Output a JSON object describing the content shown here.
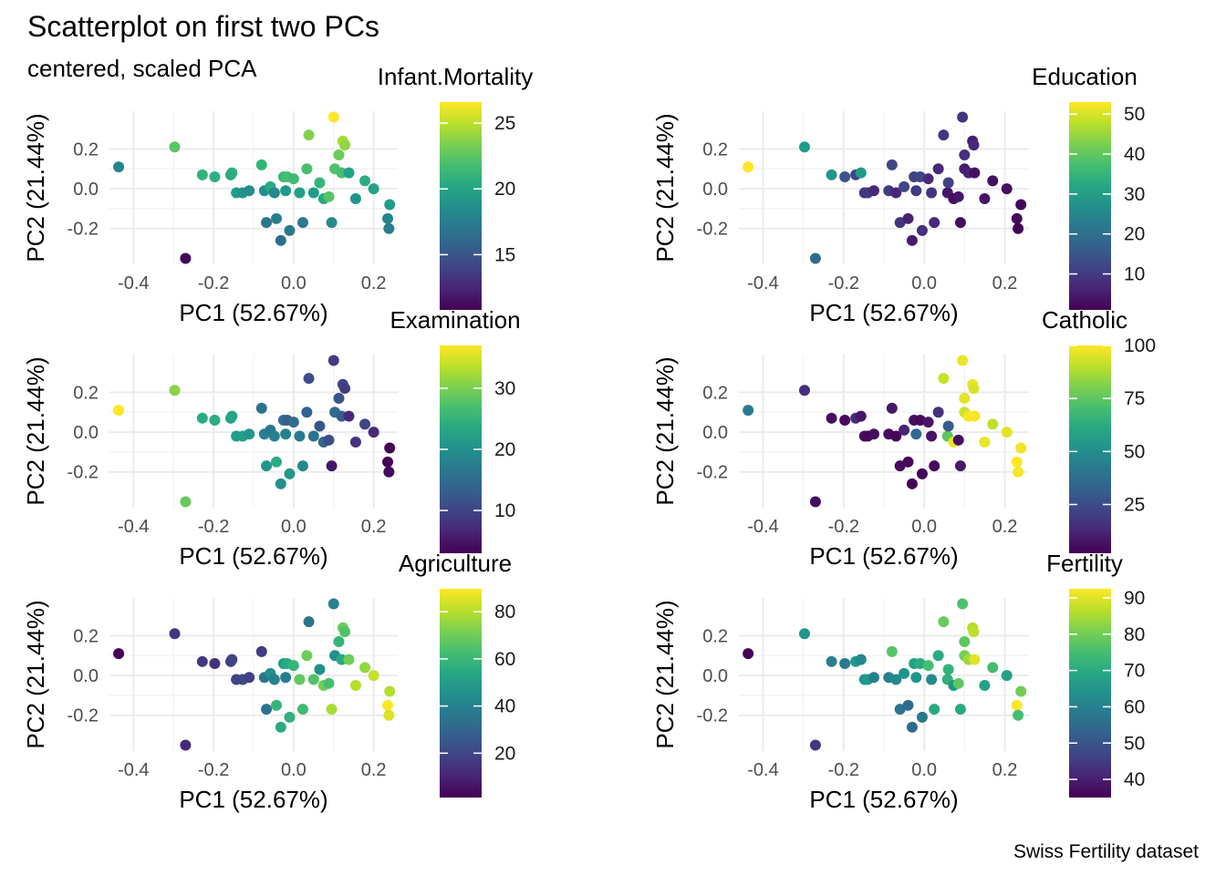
{
  "title": "Scatterplot on first two PCs",
  "subtitle": "centered, scaled PCA",
  "caption": "Swiss Fertility dataset",
  "chart_data": [
    {
      "type": "scatter",
      "color_variable": "Infant.Mortality",
      "xlabel": "PC1 (52.67%)",
      "ylabel": "PC2 (21.44%)",
      "xlim": [
        -0.46,
        0.26
      ],
      "ylim": [
        -0.38,
        0.39
      ],
      "xticks": [
        -0.4,
        -0.2,
        0.0,
        0.2
      ],
      "xtick_labels": [
        "-0.4",
        "-0.2",
        "0.0",
        "0.2"
      ],
      "yticks": [
        -0.2,
        0.0,
        0.2
      ],
      "ytick_labels": [
        "-0.2",
        "0.0",
        "0.2"
      ],
      "grid": true,
      "palette": "viridis",
      "legend": {
        "title": "Infant.Mortality",
        "range": [
          10.8,
          26.6
        ],
        "ticks": [
          15,
          20,
          25
        ],
        "tick_labels": [
          "15",
          "20",
          "25"
        ],
        "placement": "right"
      },
      "x": [
        -0.437,
        -0.297,
        -0.27,
        -0.228,
        -0.197,
        -0.157,
        -0.154,
        -0.143,
        -0.127,
        -0.111,
        -0.08,
        -0.073,
        -0.068,
        -0.058,
        -0.048,
        -0.043,
        -0.032,
        -0.025,
        -0.02,
        -0.016,
        -0.01,
        0.0,
        0.015,
        0.023,
        0.033,
        0.038,
        0.05,
        0.065,
        0.075,
        0.088,
        0.095,
        0.1,
        0.103,
        0.113,
        0.12,
        0.123,
        0.128,
        0.138,
        0.155,
        0.178,
        0.2,
        0.235,
        0.238,
        0.24
      ],
      "y": [
        0.11,
        0.21,
        -0.35,
        0.07,
        0.06,
        0.07,
        0.08,
        -0.02,
        -0.02,
        -0.01,
        0.12,
        -0.01,
        -0.17,
        0.01,
        -0.02,
        -0.15,
        -0.26,
        0.06,
        -0.01,
        0.06,
        -0.21,
        0.05,
        -0.02,
        -0.17,
        0.1,
        0.27,
        -0.02,
        0.03,
        -0.05,
        -0.04,
        -0.17,
        0.36,
        0.1,
        0.17,
        0.08,
        0.24,
        0.22,
        0.08,
        -0.05,
        0.04,
        0.0,
        -0.15,
        -0.2,
        -0.08
      ],
      "values": [
        18.0,
        22.5,
        11.0,
        21.0,
        20.8,
        20.2,
        20.6,
        19.5,
        19.0,
        18.7,
        21.2,
        18.7,
        17.0,
        20.5,
        18.2,
        17.4,
        16.5,
        21.5,
        19.4,
        21.8,
        17.3,
        21.6,
        19.8,
        17.2,
        22.0,
        23.6,
        19.5,
        21.2,
        20.2,
        22.4,
        18.5,
        26.6,
        22.2,
        23.0,
        21.9,
        24.5,
        24.0,
        19.8,
        19.0,
        20.6,
        20.0,
        18.1,
        17.5,
        19.5
      ]
    },
    {
      "type": "scatter",
      "color_variable": "Education",
      "xlabel": "PC1 (52.67%)",
      "ylabel": "PC2 (21.44%)",
      "xlim": [
        -0.46,
        0.26
      ],
      "ylim": [
        -0.38,
        0.39
      ],
      "xticks": [
        -0.4,
        -0.2,
        0.0,
        0.2
      ],
      "xtick_labels": [
        "-0.4",
        "-0.2",
        "0.0",
        "0.2"
      ],
      "yticks": [
        -0.2,
        0.0,
        0.2
      ],
      "ytick_labels": [
        "-0.2",
        "0.0",
        "0.2"
      ],
      "grid": true,
      "palette": "viridis",
      "legend": {
        "title": "Education",
        "range": [
          1,
          53
        ],
        "ticks": [
          10,
          20,
          30,
          40,
          50
        ],
        "tick_labels": [
          "10",
          "20",
          "30",
          "40",
          "50"
        ],
        "placement": "right"
      },
      "x": [
        -0.437,
        -0.297,
        -0.27,
        -0.23,
        -0.197,
        -0.17,
        -0.157,
        -0.148,
        -0.14,
        -0.125,
        -0.088,
        -0.08,
        -0.07,
        -0.06,
        -0.05,
        -0.04,
        -0.03,
        -0.025,
        -0.02,
        -0.01,
        -0.005,
        0.01,
        0.018,
        0.025,
        0.035,
        0.048,
        0.058,
        0.06,
        0.073,
        0.085,
        0.09,
        0.095,
        0.1,
        0.1,
        0.11,
        0.12,
        0.123,
        0.125,
        0.15,
        0.17,
        0.205,
        0.23,
        0.233,
        0.24
      ],
      "y": [
        0.11,
        0.21,
        -0.35,
        0.07,
        0.06,
        0.07,
        0.08,
        -0.02,
        -0.02,
        -0.01,
        -0.01,
        0.12,
        -0.02,
        -0.17,
        0.01,
        -0.15,
        -0.26,
        0.06,
        -0.01,
        0.06,
        -0.21,
        0.05,
        -0.02,
        -0.17,
        0.1,
        0.27,
        -0.02,
        0.03,
        -0.05,
        -0.04,
        -0.17,
        0.36,
        0.1,
        0.17,
        0.08,
        0.24,
        0.22,
        0.08,
        -0.05,
        0.04,
        0.0,
        -0.15,
        -0.2,
        -0.08
      ],
      "values": [
        53,
        29,
        19,
        28,
        14,
        12,
        29,
        8,
        10,
        7,
        10,
        12,
        7,
        9,
        12,
        6,
        5,
        11,
        10,
        12,
        8,
        7,
        9,
        7,
        7,
        9,
        4,
        11,
        3,
        4,
        3,
        9,
        5,
        8,
        6,
        5,
        7,
        3,
        4,
        3,
        3,
        2,
        1,
        2
      ]
    },
    {
      "type": "scatter",
      "color_variable": "Examination",
      "xlabel": "PC1 (52.67%)",
      "ylabel": "PC2 (21.44%)",
      "xlim": [
        -0.46,
        0.26
      ],
      "ylim": [
        -0.38,
        0.39
      ],
      "xticks": [
        -0.4,
        -0.2,
        0.0,
        0.2
      ],
      "xtick_labels": [
        "-0.4",
        "-0.2",
        "0.0",
        "0.2"
      ],
      "yticks": [
        -0.2,
        0.0,
        0.2
      ],
      "ytick_labels": [
        "-0.2",
        "0.0",
        "0.2"
      ],
      "grid": true,
      "palette": "viridis",
      "legend": {
        "title": "Examination",
        "range": [
          3,
          37
        ],
        "ticks": [
          10,
          20,
          30
        ],
        "tick_labels": [
          "10",
          "20",
          "30"
        ],
        "placement": "right"
      },
      "x": [
        -0.437,
        -0.297,
        -0.27,
        -0.228,
        -0.197,
        -0.157,
        -0.154,
        -0.143,
        -0.127,
        -0.111,
        -0.08,
        -0.073,
        -0.068,
        -0.058,
        -0.048,
        -0.043,
        -0.032,
        -0.025,
        -0.02,
        -0.016,
        -0.01,
        0.0,
        0.015,
        0.023,
        0.033,
        0.038,
        0.05,
        0.065,
        0.075,
        0.088,
        0.095,
        0.1,
        0.103,
        0.113,
        0.12,
        0.123,
        0.128,
        0.138,
        0.155,
        0.178,
        0.2,
        0.235,
        0.238,
        0.24
      ],
      "y": [
        0.11,
        0.21,
        -0.35,
        0.07,
        0.06,
        0.07,
        0.08,
        -0.02,
        -0.02,
        -0.01,
        0.12,
        -0.01,
        -0.17,
        0.01,
        -0.02,
        -0.15,
        -0.26,
        0.06,
        -0.01,
        0.06,
        -0.21,
        0.05,
        -0.02,
        -0.17,
        0.1,
        0.27,
        -0.02,
        0.03,
        -0.05,
        -0.04,
        -0.17,
        0.36,
        0.1,
        0.17,
        0.08,
        0.24,
        0.22,
        0.08,
        -0.05,
        0.04,
        0.0,
        -0.15,
        -0.2,
        -0.08
      ],
      "values": [
        37,
        31,
        29,
        24,
        24,
        22,
        23,
        22,
        22,
        21,
        16,
        18,
        21,
        17,
        18,
        24,
        20,
        15,
        18,
        13,
        21,
        15,
        17,
        19,
        14,
        11,
        16,
        12,
        14,
        11,
        5,
        9,
        15,
        12,
        13,
        10,
        9,
        7,
        8,
        10,
        7,
        3,
        4,
        3
      ]
    },
    {
      "type": "scatter",
      "color_variable": "Catholic",
      "xlabel": "PC1 (52.67%)",
      "ylabel": "PC2 (21.44%)",
      "xlim": [
        -0.46,
        0.26
      ],
      "ylim": [
        -0.38,
        0.39
      ],
      "xticks": [
        -0.4,
        -0.2,
        0.0,
        0.2
      ],
      "xtick_labels": [
        "-0.4",
        "-0.2",
        "0.0",
        "0.2"
      ],
      "yticks": [
        -0.2,
        0.0,
        0.2
      ],
      "ytick_labels": [
        "-0.2",
        "0.0",
        "0.2"
      ],
      "grid": true,
      "palette": "viridis",
      "legend": {
        "title": "Catholic",
        "range": [
          2,
          100
        ],
        "ticks": [
          25,
          50,
          75,
          100
        ],
        "tick_labels": [
          "25",
          "50",
          "75",
          "100"
        ],
        "placement": "right"
      },
      "x": [
        -0.437,
        -0.297,
        -0.27,
        -0.23,
        -0.197,
        -0.17,
        -0.157,
        -0.148,
        -0.14,
        -0.125,
        -0.088,
        -0.08,
        -0.07,
        -0.06,
        -0.05,
        -0.04,
        -0.03,
        -0.025,
        -0.02,
        -0.01,
        -0.005,
        0.01,
        0.018,
        0.025,
        0.035,
        0.048,
        0.058,
        0.06,
        0.073,
        0.085,
        0.09,
        0.095,
        0.1,
        0.1,
        0.11,
        0.12,
        0.123,
        0.125,
        0.15,
        0.17,
        0.205,
        0.23,
        0.233,
        0.24
      ],
      "y": [
        0.11,
        0.21,
        -0.35,
        0.07,
        0.06,
        0.07,
        0.08,
        -0.02,
        -0.02,
        -0.01,
        -0.01,
        0.12,
        -0.02,
        -0.17,
        0.01,
        -0.15,
        -0.26,
        0.06,
        -0.01,
        0.06,
        -0.21,
        0.05,
        -0.02,
        -0.17,
        0.1,
        0.27,
        -0.02,
        0.03,
        -0.05,
        -0.04,
        -0.17,
        0.36,
        0.1,
        0.17,
        0.08,
        0.24,
        0.22,
        0.08,
        -0.05,
        0.04,
        0.0,
        -0.15,
        -0.2,
        -0.08
      ],
      "values": [
        42,
        15,
        5,
        6,
        5,
        14,
        8,
        6,
        4,
        5,
        4,
        8,
        3,
        5,
        12,
        4,
        2,
        6,
        35,
        5,
        3,
        8,
        7,
        4,
        16,
        92,
        75,
        30,
        98,
        6,
        9,
        97,
        93,
        96,
        99,
        97,
        95,
        99,
        97,
        91,
        96,
        100,
        99,
        98
      ]
    },
    {
      "type": "scatter",
      "color_variable": "Agriculture",
      "xlabel": "PC1 (52.67%)",
      "ylabel": "PC2 (21.44%)",
      "xlim": [
        -0.46,
        0.26
      ],
      "ylim": [
        -0.38,
        0.39
      ],
      "xticks": [
        -0.4,
        -0.2,
        0.0,
        0.2
      ],
      "xtick_labels": [
        "-0.4",
        "-0.2",
        "0.0",
        "0.2"
      ],
      "yticks": [
        -0.2,
        0.0,
        0.2
      ],
      "ytick_labels": [
        "-0.2",
        "0.0",
        "0.2"
      ],
      "grid": true,
      "palette": "viridis",
      "legend": {
        "title": "Agriculture",
        "range": [
          1.2,
          89.7
        ],
        "ticks": [
          20,
          40,
          60,
          80
        ],
        "tick_labels": [
          "20",
          "40",
          "60",
          "80"
        ],
        "placement": "right"
      },
      "x": [
        -0.437,
        -0.297,
        -0.27,
        -0.228,
        -0.197,
        -0.157,
        -0.154,
        -0.143,
        -0.127,
        -0.111,
        -0.08,
        -0.073,
        -0.068,
        -0.058,
        -0.048,
        -0.043,
        -0.032,
        -0.025,
        -0.02,
        -0.016,
        -0.01,
        0.0,
        0.015,
        0.023,
        0.033,
        0.038,
        0.05,
        0.065,
        0.075,
        0.088,
        0.095,
        0.1,
        0.103,
        0.113,
        0.12,
        0.123,
        0.128,
        0.138,
        0.155,
        0.178,
        0.2,
        0.235,
        0.238,
        0.24
      ],
      "y": [
        0.11,
        0.21,
        -0.35,
        0.07,
        0.06,
        0.07,
        0.08,
        -0.02,
        -0.02,
        -0.01,
        0.12,
        -0.01,
        -0.17,
        0.01,
        -0.02,
        -0.15,
        -0.26,
        0.06,
        -0.01,
        0.06,
        -0.21,
        0.05,
        -0.02,
        -0.17,
        0.1,
        0.27,
        -0.02,
        0.03,
        -0.05,
        -0.04,
        -0.17,
        0.36,
        0.1,
        0.17,
        0.08,
        0.24,
        0.22,
        0.08,
        -0.05,
        0.04,
        0.0,
        -0.15,
        -0.2,
        -0.08
      ],
      "values": [
        1.2,
        15.2,
        12.0,
        16.0,
        14.0,
        17.6,
        19.4,
        19.0,
        20.0,
        18.0,
        16.5,
        35.0,
        35.0,
        45.0,
        40.0,
        60.0,
        55.0,
        50.0,
        38.0,
        55.0,
        58.0,
        60.0,
        68.0,
        62.0,
        70.0,
        35.0,
        65.0,
        45.0,
        70.0,
        63.0,
        78.0,
        40.0,
        45.0,
        60.0,
        55.0,
        70.0,
        65.0,
        70.0,
        80.0,
        75.0,
        82.0,
        89.7,
        85.0,
        80.0
      ]
    },
    {
      "type": "scatter",
      "color_variable": "Fertility",
      "xlabel": "PC1 (52.67%)",
      "ylabel": "PC2 (21.44%)",
      "xlim": [
        -0.46,
        0.26
      ],
      "ylim": [
        -0.38,
        0.39
      ],
      "xticks": [
        -0.4,
        -0.2,
        0.0,
        0.2
      ],
      "xtick_labels": [
        "-0.4",
        "-0.2",
        "0.0",
        "0.2"
      ],
      "yticks": [
        -0.2,
        0.0,
        0.2
      ],
      "ytick_labels": [
        "-0.2",
        "0.0",
        "0.2"
      ],
      "grid": true,
      "palette": "viridis",
      "legend": {
        "title": "Fertility",
        "range": [
          35,
          92.5
        ],
        "ticks": [
          40,
          50,
          60,
          70,
          80,
          90
        ],
        "tick_labels": [
          "40",
          "50",
          "60",
          "70",
          "80",
          "90"
        ],
        "placement": "right"
      },
      "x": [
        -0.437,
        -0.297,
        -0.27,
        -0.23,
        -0.197,
        -0.17,
        -0.157,
        -0.148,
        -0.14,
        -0.125,
        -0.088,
        -0.08,
        -0.07,
        -0.06,
        -0.05,
        -0.04,
        -0.03,
        -0.025,
        -0.02,
        -0.01,
        -0.005,
        0.01,
        0.018,
        0.025,
        0.035,
        0.048,
        0.058,
        0.06,
        0.073,
        0.085,
        0.09,
        0.095,
        0.1,
        0.1,
        0.11,
        0.12,
        0.123,
        0.125,
        0.15,
        0.17,
        0.205,
        0.23,
        0.233,
        0.24
      ],
      "y": [
        0.11,
        0.21,
        -0.35,
        0.07,
        0.06,
        0.07,
        0.08,
        -0.02,
        -0.02,
        -0.01,
        -0.01,
        0.12,
        -0.02,
        -0.17,
        0.01,
        -0.15,
        -0.26,
        0.06,
        -0.01,
        0.06,
        -0.21,
        0.05,
        -0.02,
        -0.17,
        0.1,
        0.27,
        -0.02,
        0.03,
        -0.05,
        -0.04,
        -0.17,
        0.36,
        0.1,
        0.17,
        0.08,
        0.24,
        0.22,
        0.08,
        -0.05,
        0.04,
        0.0,
        -0.15,
        -0.2,
        -0.08
      ],
      "values": [
        35.0,
        65.0,
        44.0,
        60.0,
        58.0,
        65.5,
        62.0,
        64.0,
        66.0,
        60.0,
        60.0,
        77.0,
        62.0,
        57.0,
        65.0,
        55.0,
        55.0,
        68.0,
        65.0,
        70.0,
        58.0,
        75.0,
        62.0,
        70.0,
        70.0,
        79.0,
        72.0,
        72.0,
        65.0,
        78.0,
        70.0,
        76.0,
        80.0,
        78.0,
        84.0,
        86.0,
        87.0,
        90.0,
        68.0,
        75.0,
        68.0,
        92.5,
        75.0,
        80.0
      ]
    }
  ]
}
